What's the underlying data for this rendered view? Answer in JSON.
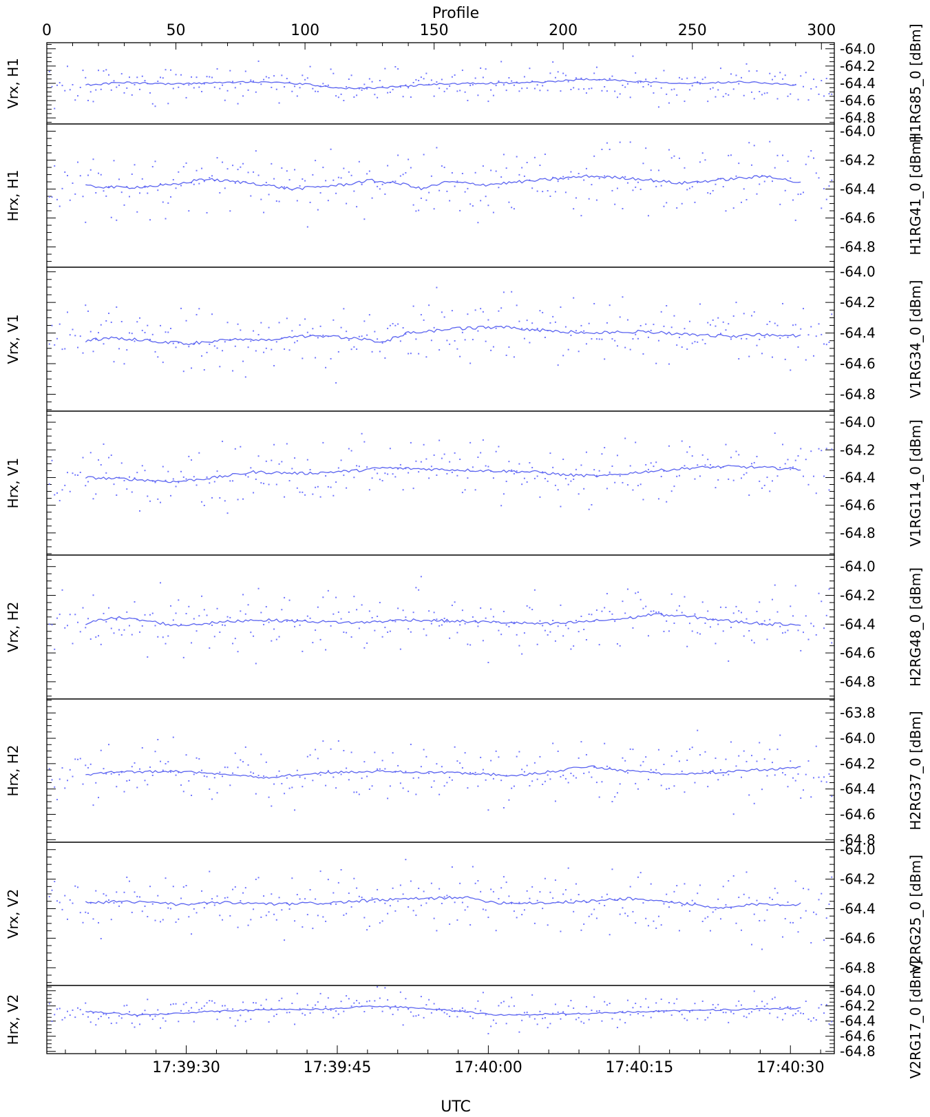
{
  "chart_data": {
    "type": "scatter",
    "top_axis": {
      "label": "Profile",
      "range": [
        0,
        305
      ],
      "ticks": [
        "0",
        "50",
        "100",
        "150",
        "200",
        "250",
        "300"
      ]
    },
    "bottom_axis": {
      "label": "UTC",
      "ticks": [
        "17:39:30",
        "17:39:45",
        "17:40:00",
        "17:40:15",
        "17:40:30"
      ],
      "tick_profiles": [
        54,
        112.5,
        171,
        229.5,
        288
      ]
    },
    "colors": {
      "points": "#6f74ff",
      "line": "#5a63f0"
    },
    "grid": false,
    "legend": "none",
    "panels": [
      {
        "left_label": "Vrx, H1",
        "right_label": "H1RG85_0 [dBm]",
        "ylim": [
          -64.87,
          -63.93
        ],
        "ticks": [
          "-64.0",
          "-64.2",
          "-64.4",
          "-64.6",
          "-64.8"
        ],
        "tick_values": [
          -64.0,
          -64.2,
          -64.4,
          -64.6,
          -64.8
        ],
        "mean_level": -64.41,
        "spread": 0.19,
        "seed": 11,
        "running_mean": [
          [
            15,
            -64.42
          ],
          [
            30,
            -64.39
          ],
          [
            50,
            -64.41
          ],
          [
            80,
            -64.38
          ],
          [
            100,
            -64.41
          ],
          [
            115,
            -64.46
          ],
          [
            130,
            -64.45
          ],
          [
            150,
            -64.41
          ],
          [
            170,
            -64.4
          ],
          [
            190,
            -64.39
          ],
          [
            210,
            -64.35
          ],
          [
            230,
            -64.38
          ],
          [
            250,
            -64.4
          ],
          [
            270,
            -64.38
          ],
          [
            290,
            -64.42
          ]
        ]
      },
      {
        "left_label": "Hrx, H1",
        "right_label": "H1RG41_0 [dBm]",
        "ylim": [
          -64.94,
          -63.95
        ],
        "ticks": [
          "-64.0",
          "-64.2",
          "-64.4",
          "-64.6",
          "-64.8"
        ],
        "tick_values": [
          -64.0,
          -64.2,
          -64.4,
          -64.6,
          -64.8
        ],
        "mean_level": -64.37,
        "spread": 0.21,
        "seed": 23,
        "running_mean": [
          [
            15,
            -64.38
          ],
          [
            30,
            -64.39
          ],
          [
            50,
            -64.37
          ],
          [
            60,
            -64.33
          ],
          [
            80,
            -64.36
          ],
          [
            95,
            -64.4
          ],
          [
            115,
            -64.37
          ],
          [
            125,
            -64.34
          ],
          [
            140,
            -64.37
          ],
          [
            145,
            -64.4
          ],
          [
            155,
            -64.35
          ],
          [
            170,
            -64.37
          ],
          [
            190,
            -64.34
          ],
          [
            210,
            -64.31
          ],
          [
            230,
            -64.33
          ],
          [
            245,
            -64.36
          ],
          [
            265,
            -64.33
          ],
          [
            280,
            -64.31
          ],
          [
            292,
            -64.36
          ]
        ]
      },
      {
        "left_label": "Vrx, V1",
        "right_label": "V1RG34_0 [dBm]",
        "ylim": [
          -64.91,
          -63.97
        ],
        "ticks": [
          "-64.0",
          "-64.2",
          "-64.4",
          "-64.6",
          "-64.8"
        ],
        "tick_values": [
          -64.0,
          -64.2,
          -64.4,
          -64.6,
          -64.8
        ],
        "mean_level": -64.42,
        "spread": 0.19,
        "seed": 37,
        "running_mean": [
          [
            15,
            -64.45
          ],
          [
            25,
            -64.43
          ],
          [
            40,
            -64.45
          ],
          [
            55,
            -64.47
          ],
          [
            70,
            -64.44
          ],
          [
            85,
            -64.45
          ],
          [
            100,
            -64.42
          ],
          [
            120,
            -64.43
          ],
          [
            130,
            -64.46
          ],
          [
            140,
            -64.4
          ],
          [
            160,
            -64.37
          ],
          [
            175,
            -64.36
          ],
          [
            190,
            -64.38
          ],
          [
            210,
            -64.4
          ],
          [
            230,
            -64.39
          ],
          [
            250,
            -64.41
          ],
          [
            265,
            -64.42
          ],
          [
            280,
            -64.41
          ],
          [
            292,
            -64.42
          ]
        ]
      },
      {
        "left_label": "Hrx, V1",
        "right_label": "V1RG114_0 [dBm]",
        "ylim": [
          -64.96,
          -63.92
        ],
        "ticks": [
          "-64.0",
          "-64.2",
          "-64.4",
          "-64.6",
          "-64.8"
        ],
        "tick_values": [
          -64.0,
          -64.2,
          -64.4,
          -64.6,
          -64.8
        ],
        "mean_level": -64.37,
        "spread": 0.19,
        "seed": 41,
        "running_mean": [
          [
            15,
            -64.4
          ],
          [
            30,
            -64.41
          ],
          [
            50,
            -64.43
          ],
          [
            65,
            -64.4
          ],
          [
            80,
            -64.36
          ],
          [
            100,
            -64.37
          ],
          [
            120,
            -64.35
          ],
          [
            130,
            -64.33
          ],
          [
            150,
            -64.34
          ],
          [
            170,
            -64.35
          ],
          [
            190,
            -64.36
          ],
          [
            200,
            -64.38
          ],
          [
            215,
            -64.39
          ],
          [
            230,
            -64.36
          ],
          [
            250,
            -64.33
          ],
          [
            265,
            -64.32
          ],
          [
            280,
            -64.33
          ],
          [
            292,
            -64.34
          ]
        ]
      },
      {
        "left_label": "Vrx, H2",
        "right_label": "H2RG48_0 [dBm]",
        "ylim": [
          -64.92,
          -63.92
        ],
        "ticks": [
          "-64.0",
          "-64.2",
          "-64.4",
          "-64.6",
          "-64.8"
        ],
        "tick_values": [
          -64.0,
          -64.2,
          -64.4,
          -64.6,
          -64.8
        ],
        "mean_level": -64.38,
        "spread": 0.2,
        "seed": 53,
        "running_mean": [
          [
            15,
            -64.4
          ],
          [
            25,
            -64.35
          ],
          [
            40,
            -64.38
          ],
          [
            50,
            -64.41
          ],
          [
            65,
            -64.39
          ],
          [
            80,
            -64.37
          ],
          [
            100,
            -64.38
          ],
          [
            120,
            -64.39
          ],
          [
            140,
            -64.37
          ],
          [
            160,
            -64.38
          ],
          [
            180,
            -64.39
          ],
          [
            195,
            -64.4
          ],
          [
            210,
            -64.38
          ],
          [
            225,
            -64.36
          ],
          [
            235,
            -64.33
          ],
          [
            250,
            -64.35
          ],
          [
            265,
            -64.38
          ],
          [
            280,
            -64.4
          ],
          [
            292,
            -64.4
          ]
        ]
      },
      {
        "left_label": "Hrx, H2",
        "right_label": "H2RG37_0 [dBm]",
        "ylim": [
          -64.82,
          -63.69
        ],
        "ticks": [
          "-63.8",
          "-64.0",
          "-64.2",
          "-64.4",
          "-64.6",
          "-64.8"
        ],
        "tick_values": [
          -63.8,
          -64.0,
          -64.2,
          -64.4,
          -64.6,
          -64.8
        ],
        "mean_level": -64.27,
        "spread": 0.21,
        "seed": 67,
        "running_mean": [
          [
            15,
            -64.29
          ],
          [
            25,
            -64.27
          ],
          [
            50,
            -64.26
          ],
          [
            70,
            -64.28
          ],
          [
            85,
            -64.31
          ],
          [
            95,
            -64.29
          ],
          [
            110,
            -64.27
          ],
          [
            130,
            -64.26
          ],
          [
            150,
            -64.27
          ],
          [
            170,
            -64.28
          ],
          [
            180,
            -64.3
          ],
          [
            200,
            -64.25
          ],
          [
            210,
            -64.22
          ],
          [
            225,
            -64.26
          ],
          [
            240,
            -64.28
          ],
          [
            260,
            -64.27
          ],
          [
            275,
            -64.25
          ],
          [
            292,
            -64.23
          ]
        ]
      },
      {
        "left_label": "Vrx, V2",
        "right_label": "V2RG25_0 [dBm]",
        "ylim": [
          -64.92,
          -63.95
        ],
        "ticks": [
          "-64.0",
          "-64.2",
          "-64.4",
          "-64.6",
          "-64.8"
        ],
        "tick_values": [
          -64.0,
          -64.2,
          -64.4,
          -64.6,
          -64.8
        ],
        "mean_level": -64.36,
        "spread": 0.19,
        "seed": 79,
        "running_mean": [
          [
            15,
            -64.36
          ],
          [
            30,
            -64.35
          ],
          [
            50,
            -64.37
          ],
          [
            70,
            -64.36
          ],
          [
            90,
            -64.37
          ],
          [
            110,
            -64.36
          ],
          [
            130,
            -64.34
          ],
          [
            150,
            -64.33
          ],
          [
            160,
            -64.32
          ],
          [
            175,
            -64.36
          ],
          [
            195,
            -64.36
          ],
          [
            210,
            -64.35
          ],
          [
            225,
            -64.33
          ],
          [
            245,
            -64.36
          ],
          [
            260,
            -64.4
          ],
          [
            275,
            -64.37
          ],
          [
            292,
            -64.37
          ]
        ]
      },
      {
        "left_label": "Hrx, V2",
        "right_label": "V2RG17_0 [dBm]",
        "ylim": [
          -64.83,
          -63.93
        ],
        "ticks": [
          "-64.0",
          "-64.2",
          "-64.4",
          "-64.6",
          "-64.8"
        ],
        "tick_values": [
          -64.0,
          -64.2,
          -64.4,
          -64.6,
          -64.8
        ],
        "mean_level": -64.27,
        "spread": 0.17,
        "seed": 97,
        "running_mean": [
          [
            15,
            -64.27
          ],
          [
            35,
            -64.32
          ],
          [
            50,
            -64.3
          ],
          [
            70,
            -64.26
          ],
          [
            90,
            -64.25
          ],
          [
            110,
            -64.24
          ],
          [
            125,
            -64.2
          ],
          [
            140,
            -64.22
          ],
          [
            160,
            -64.27
          ],
          [
            175,
            -64.32
          ],
          [
            190,
            -64.31
          ],
          [
            210,
            -64.3
          ],
          [
            225,
            -64.28
          ],
          [
            245,
            -64.26
          ],
          [
            265,
            -64.25
          ],
          [
            280,
            -64.24
          ],
          [
            292,
            -64.23
          ]
        ]
      }
    ]
  }
}
